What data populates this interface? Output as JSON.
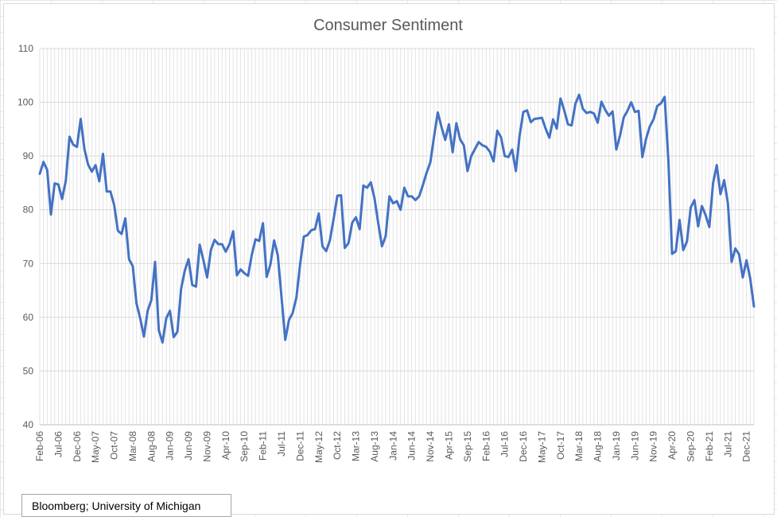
{
  "chart_data": {
    "type": "line",
    "title": "Consumer Sentiment",
    "xlabel": "",
    "ylabel": "",
    "ylim": [
      40,
      110
    ],
    "y_ticks": [
      40,
      50,
      60,
      70,
      80,
      90,
      100,
      110
    ],
    "grid": "vertical and horizontal gridlines",
    "legend": "none",
    "line_color": "#4472C4",
    "x_tick_labels": [
      "Feb-06",
      "Jul-06",
      "Dec-06",
      "May-07",
      "Oct-07",
      "Mar-08",
      "Aug-08",
      "Jan-09",
      "Jun-09",
      "Nov-09",
      "Apr-10",
      "Sep-10",
      "Feb-11",
      "Jul-11",
      "Dec-11",
      "May-12",
      "Oct-12",
      "Mar-13",
      "Aug-13",
      "Jan-14",
      "Jun-14",
      "Nov-14",
      "Apr-15",
      "Sep-15",
      "Feb-16",
      "Jul-16",
      "Dec-16",
      "May-17",
      "Oct-17",
      "Mar-18",
      "Aug-18",
      "Jan-19",
      "Jun-19",
      "Nov-19",
      "Apr-20",
      "Sep-20",
      "Feb-21",
      "Jul-21",
      "Dec-21"
    ],
    "series": [
      {
        "values": [
          86.7,
          88.9,
          87.4,
          79.1,
          84.9,
          84.7,
          82.0,
          85.4,
          93.6,
          92.1,
          91.7,
          96.9,
          91.3,
          88.4,
          87.1,
          88.3,
          85.3,
          90.4,
          83.4,
          83.4,
          80.9,
          76.1,
          75.5,
          78.4,
          70.8,
          69.5,
          62.6,
          59.8,
          56.4,
          61.2,
          63.2,
          70.3,
          57.6,
          55.3,
          59.8,
          61.2,
          56.3,
          57.3,
          65.3,
          68.7,
          70.8,
          66.0,
          65.7,
          73.5,
          70.6,
          67.4,
          72.5,
          74.4,
          73.6,
          73.6,
          72.2,
          73.6,
          76.0,
          67.8,
          68.9,
          68.2,
          67.7,
          71.6,
          74.5,
          74.2,
          77.5,
          67.5,
          69.8,
          74.3,
          71.5,
          63.7,
          55.8,
          59.5,
          60.8,
          63.7,
          69.9,
          75.0,
          75.3,
          76.2,
          76.4,
          79.3,
          73.2,
          72.3,
          74.3,
          78.3,
          82.6,
          82.7,
          72.9,
          73.8,
          77.6,
          78.6,
          76.4,
          84.5,
          84.1,
          85.1,
          82.1,
          77.5,
          73.2,
          75.1,
          82.5,
          81.2,
          81.6,
          80.0,
          84.1,
          82.5,
          82.5,
          81.8,
          82.5,
          84.6,
          86.9,
          88.8,
          93.6,
          98.1,
          95.4,
          93.0,
          95.9,
          90.7,
          96.1,
          93.1,
          92.0,
          87.2,
          90.0,
          91.3,
          92.6,
          92.0,
          91.7,
          90.8,
          89.0,
          94.7,
          93.5,
          90.0,
          89.8,
          91.2,
          87.2,
          93.8,
          98.2,
          98.5,
          96.3,
          96.9,
          97.0,
          97.1,
          95.1,
          93.4,
          96.8,
          95.1,
          100.7,
          98.5,
          95.9,
          95.7,
          99.7,
          101.4,
          98.8,
          98.0,
          98.2,
          97.9,
          96.2,
          100.1,
          98.6,
          97.5,
          98.3,
          91.2,
          93.8,
          97.2,
          98.4,
          100.0,
          98.2,
          98.4,
          89.8,
          93.2,
          95.5,
          96.8,
          99.3,
          99.8,
          101.0,
          89.1,
          71.8,
          72.3,
          78.1,
          72.5,
          74.1,
          80.4,
          81.8,
          76.9,
          80.7,
          79.0,
          76.8,
          84.9,
          88.3,
          82.9,
          85.5,
          81.2,
          70.3,
          72.8,
          71.7,
          67.4,
          70.6,
          67.2,
          62.0
        ]
      }
    ],
    "source_note": "Bloomberg; University of Michigan"
  }
}
